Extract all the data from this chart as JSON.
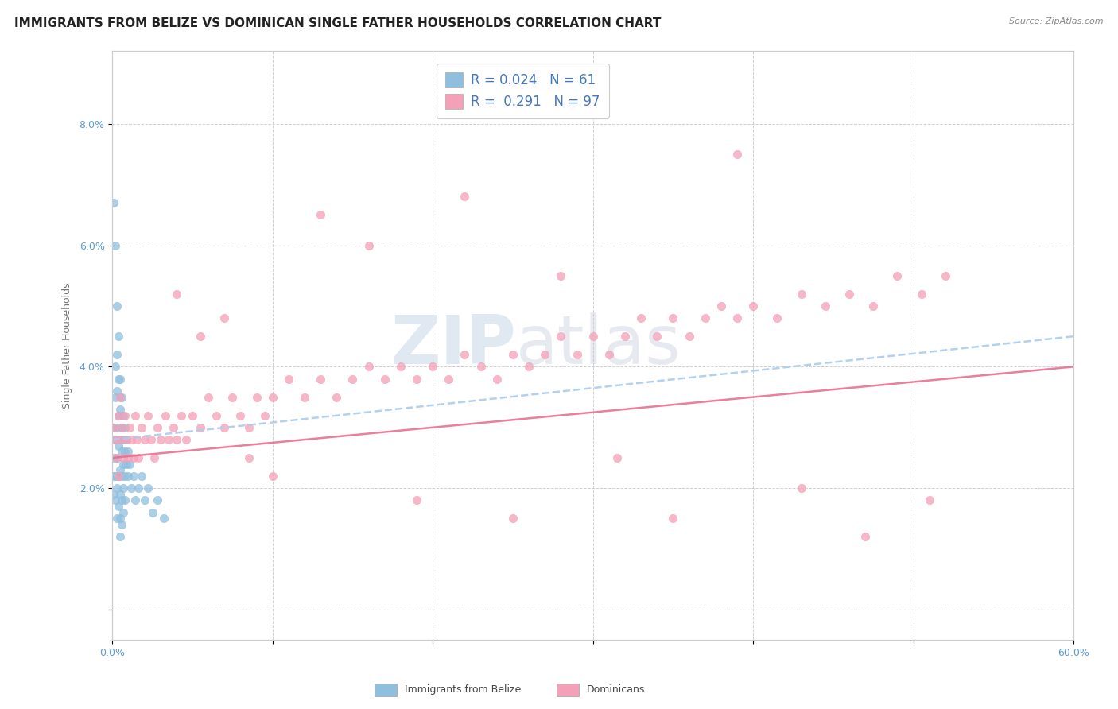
{
  "title": "IMMIGRANTS FROM BELIZE VS DOMINICAN SINGLE FATHER HOUSEHOLDS CORRELATION CHART",
  "source_text": "Source: ZipAtlas.com",
  "ylabel": "Single Father Households",
  "xlim": [
    0.0,
    0.6
  ],
  "ylim": [
    -0.005,
    0.092
  ],
  "x_ticks": [
    0.0,
    0.1,
    0.2,
    0.3,
    0.4,
    0.5,
    0.6
  ],
  "x_tick_labels": [
    "0.0%",
    "",
    "",
    "",
    "",
    "",
    "60.0%"
  ],
  "y_ticks": [
    0.0,
    0.02,
    0.04,
    0.06,
    0.08
  ],
  "y_tick_labels": [
    "",
    "2.0%",
    "4.0%",
    "6.0%",
    "8.0%"
  ],
  "R_belize": 0.024,
  "N_belize": 61,
  "R_dominican": 0.291,
  "N_dominican": 97,
  "color_belize": "#8fbfdf",
  "color_dominican": "#f4a0b8",
  "color_belize_line": "#aaccee",
  "color_dominican_line": "#e87090",
  "legend_label_belize": "Immigrants from Belize",
  "legend_label_dominican": "Dominicans",
  "background_color": "#ffffff",
  "watermark_zip": "ZIP",
  "watermark_atlas": "atlas",
  "title_fontsize": 11,
  "axis_label_fontsize": 9,
  "tick_fontsize": 9,
  "belize_x": [
    0.001,
    0.001,
    0.001,
    0.001,
    0.001,
    0.002,
    0.002,
    0.002,
    0.002,
    0.002,
    0.002,
    0.003,
    0.003,
    0.003,
    0.003,
    0.003,
    0.003,
    0.003,
    0.004,
    0.004,
    0.004,
    0.004,
    0.004,
    0.004,
    0.005,
    0.005,
    0.005,
    0.005,
    0.005,
    0.005,
    0.005,
    0.006,
    0.006,
    0.006,
    0.006,
    0.006,
    0.006,
    0.007,
    0.007,
    0.007,
    0.007,
    0.007,
    0.008,
    0.008,
    0.008,
    0.008,
    0.009,
    0.009,
    0.01,
    0.01,
    0.011,
    0.012,
    0.013,
    0.014,
    0.016,
    0.018,
    0.02,
    0.022,
    0.025,
    0.028,
    0.032
  ],
  "belize_y": [
    0.067,
    0.03,
    0.025,
    0.022,
    0.019,
    0.06,
    0.04,
    0.035,
    0.028,
    0.022,
    0.018,
    0.05,
    0.042,
    0.036,
    0.03,
    0.025,
    0.02,
    0.015,
    0.045,
    0.038,
    0.032,
    0.027,
    0.022,
    0.017,
    0.038,
    0.033,
    0.028,
    0.023,
    0.019,
    0.015,
    0.012,
    0.035,
    0.03,
    0.026,
    0.022,
    0.018,
    0.014,
    0.032,
    0.028,
    0.024,
    0.02,
    0.016,
    0.03,
    0.026,
    0.022,
    0.018,
    0.028,
    0.024,
    0.026,
    0.022,
    0.024,
    0.02,
    0.022,
    0.018,
    0.02,
    0.022,
    0.018,
    0.02,
    0.016,
    0.018,
    0.015
  ],
  "dominican_x": [
    0.001,
    0.002,
    0.003,
    0.004,
    0.004,
    0.005,
    0.005,
    0.006,
    0.007,
    0.008,
    0.009,
    0.01,
    0.011,
    0.012,
    0.013,
    0.014,
    0.015,
    0.016,
    0.018,
    0.02,
    0.022,
    0.024,
    0.026,
    0.028,
    0.03,
    0.033,
    0.035,
    0.038,
    0.04,
    0.043,
    0.046,
    0.05,
    0.055,
    0.06,
    0.065,
    0.07,
    0.075,
    0.08,
    0.085,
    0.09,
    0.095,
    0.1,
    0.11,
    0.12,
    0.13,
    0.14,
    0.15,
    0.16,
    0.17,
    0.18,
    0.19,
    0.2,
    0.21,
    0.22,
    0.23,
    0.24,
    0.25,
    0.26,
    0.27,
    0.28,
    0.29,
    0.3,
    0.31,
    0.32,
    0.33,
    0.34,
    0.35,
    0.36,
    0.37,
    0.38,
    0.39,
    0.4,
    0.415,
    0.43,
    0.445,
    0.46,
    0.475,
    0.49,
    0.505,
    0.52,
    0.04,
    0.055,
    0.07,
    0.085,
    0.1,
    0.13,
    0.16,
    0.19,
    0.22,
    0.25,
    0.28,
    0.315,
    0.35,
    0.39,
    0.43,
    0.47,
    0.51
  ],
  "dominican_y": [
    0.03,
    0.028,
    0.025,
    0.032,
    0.022,
    0.028,
    0.035,
    0.03,
    0.025,
    0.032,
    0.028,
    0.025,
    0.03,
    0.028,
    0.025,
    0.032,
    0.028,
    0.025,
    0.03,
    0.028,
    0.032,
    0.028,
    0.025,
    0.03,
    0.028,
    0.032,
    0.028,
    0.03,
    0.028,
    0.032,
    0.028,
    0.032,
    0.03,
    0.035,
    0.032,
    0.03,
    0.035,
    0.032,
    0.03,
    0.035,
    0.032,
    0.035,
    0.038,
    0.035,
    0.038,
    0.035,
    0.038,
    0.04,
    0.038,
    0.04,
    0.038,
    0.04,
    0.038,
    0.042,
    0.04,
    0.038,
    0.042,
    0.04,
    0.042,
    0.045,
    0.042,
    0.045,
    0.042,
    0.045,
    0.048,
    0.045,
    0.048,
    0.045,
    0.048,
    0.05,
    0.048,
    0.05,
    0.048,
    0.052,
    0.05,
    0.052,
    0.05,
    0.055,
    0.052,
    0.055,
    0.052,
    0.045,
    0.048,
    0.025,
    0.022,
    0.065,
    0.06,
    0.018,
    0.068,
    0.015,
    0.055,
    0.025,
    0.015,
    0.075,
    0.02,
    0.012,
    0.018
  ]
}
